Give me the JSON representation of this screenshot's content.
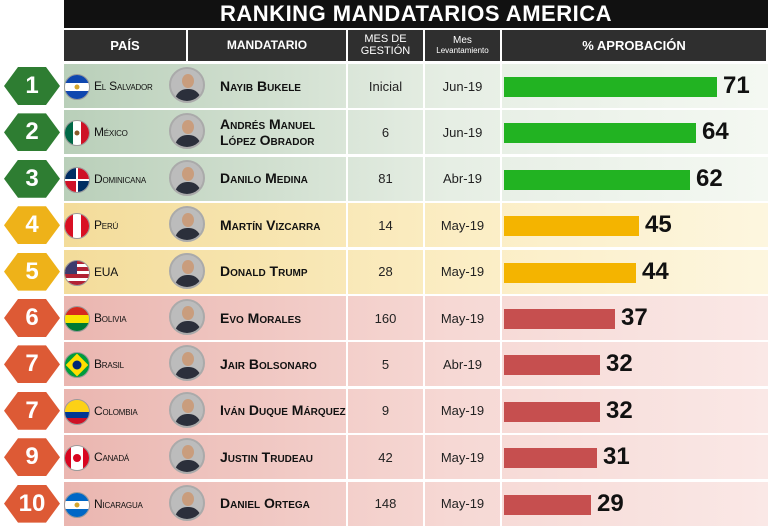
{
  "title": "RANKING MANDATARIOS AMERICA",
  "headers": {
    "country": "PAÍS",
    "leader": "MANDATARIO",
    "months_line1": "MES DE",
    "months_line2": "GESTIÓN",
    "survey_line1": "Mes",
    "survey_line2": "Levantamiento",
    "approval": "% APROBACIÓN"
  },
  "colors": {
    "green": "#22b322",
    "yellow": "#f4b400",
    "red": "#c64f4f"
  },
  "chart_data": {
    "type": "bar",
    "orientation": "horizontal",
    "title": "RANKING MANDATARIOS AMERICA",
    "value_label": "% APROBACIÓN",
    "xlim": [
      0,
      80
    ],
    "rows": [
      {
        "rank": "1",
        "country": "El Salvador",
        "leader": "Nayib Bukele",
        "months": "Inicial",
        "survey": "Jun-19",
        "value": 71,
        "tier": "green",
        "flag": "el-salvador"
      },
      {
        "rank": "2",
        "country": "México",
        "leader": "Andrés Manuel López Obrador",
        "months": "6",
        "survey": "Jun-19",
        "value": 64,
        "tier": "green",
        "flag": "mexico"
      },
      {
        "rank": "3",
        "country": "Dominicana",
        "leader": "Danilo Medina",
        "months": "81",
        "survey": "Abr-19",
        "value": 62,
        "tier": "green",
        "flag": "dominicana"
      },
      {
        "rank": "4",
        "country": "Perú",
        "leader": "Martín Vizcarra",
        "months": "14",
        "survey": "May-19",
        "value": 45,
        "tier": "yellow",
        "flag": "peru"
      },
      {
        "rank": "5",
        "country": "EUA",
        "leader": "Donald Trump",
        "months": "28",
        "survey": "May-19",
        "value": 44,
        "tier": "yellow",
        "flag": "usa"
      },
      {
        "rank": "6",
        "country": "Bolivia",
        "leader": "Evo Morales",
        "months": "160",
        "survey": "May-19",
        "value": 37,
        "tier": "red",
        "flag": "bolivia"
      },
      {
        "rank": "7",
        "country": "Brasil",
        "leader": "Jair Bolsonaro",
        "months": "5",
        "survey": "Abr-19",
        "value": 32,
        "tier": "red",
        "flag": "brasil"
      },
      {
        "rank": "7",
        "country": "Colombia",
        "leader": "Iván Duque Márquez",
        "months": "9",
        "survey": "May-19",
        "value": 32,
        "tier": "red",
        "flag": "colombia"
      },
      {
        "rank": "9",
        "country": "Canadá",
        "leader": "Justin Trudeau",
        "months": "42",
        "survey": "May-19",
        "value": 31,
        "tier": "red",
        "flag": "canada"
      },
      {
        "rank": "10",
        "country": "Nicaragua",
        "leader": "Daniel Ortega",
        "months": "148",
        "survey": "May-19",
        "value": 29,
        "tier": "red",
        "flag": "nicaragua"
      }
    ]
  }
}
